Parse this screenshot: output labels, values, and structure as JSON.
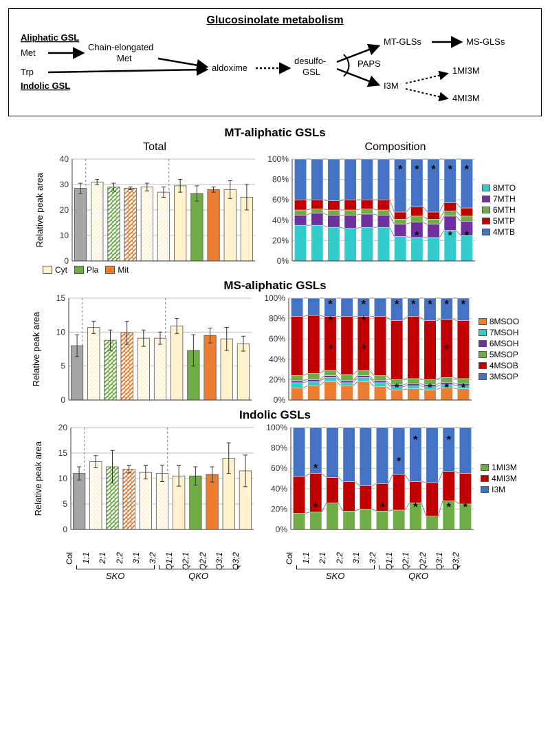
{
  "diagram": {
    "title": "Glucosinolate metabolism",
    "labels": {
      "aliphatic": "Aliphatic GSL",
      "indolic": "Indolic GSL",
      "met": "Met",
      "trp": "Trp",
      "chain1": "Chain-elongated",
      "chain2": "Met",
      "aldoxime": "aldoxime",
      "desulfo1": "desulfo-",
      "desulfo2": "GSL",
      "mtglss": "MT-GLSs",
      "msglss": "MS-GLSs",
      "paps": "PAPS",
      "i3m": "I3M",
      "m1": "1MI3M",
      "m4": "4MI3M"
    }
  },
  "colors": {
    "bg": "#ffffff",
    "gridline": "#bfbfbf",
    "axis": "#595959",
    "col": "#a6a6a6",
    "cyt": "#fff2cc",
    "pla": "#70ad47",
    "mit": "#ed7d31",
    "hatch": "#bfbfbf",
    "text": "#000000",
    "mt": {
      "8MTO": "#33cccc",
      "7MTH": "#7030a0",
      "6MTH": "#70ad47",
      "5MTP": "#c00000",
      "4MTB": "#4472c4"
    },
    "ms": {
      "8MSOO": "#ed7d31",
      "7MSOH": "#33cccc",
      "6MSOH": "#7030a0",
      "5MSOP": "#70ad47",
      "4MSOB": "#c00000",
      "3MSOP": "#4472c4"
    },
    "ind": {
      "1MI3M": "#70ad47",
      "4MI3M": "#c00000",
      "I3M": "#4472c4"
    }
  },
  "legend_cyt": [
    {
      "label": "Cyt",
      "color": "#fff2cc"
    },
    {
      "label": "Pla",
      "color": "#70ad47"
    },
    {
      "label": "Mit",
      "color": "#ed7d31"
    }
  ],
  "categories": [
    "Col",
    "1;1",
    "2;1",
    "2;2",
    "3;1",
    "3;2",
    "Q1;1",
    "Q2;1",
    "Q2;2",
    "Q3;1",
    "Q3;2"
  ],
  "cat_solid": [
    true,
    false,
    false,
    false,
    false,
    false,
    true,
    true,
    true,
    true,
    true
  ],
  "cat_fill": [
    "col",
    "cyt",
    "pla",
    "mit",
    "cyt",
    "cyt",
    "cyt",
    "pla",
    "mit",
    "cyt",
    "cyt"
  ],
  "dashed_after": [
    0,
    5
  ],
  "brackets": [
    {
      "from": 1,
      "to": 5,
      "label": "SKO"
    },
    {
      "from": 6,
      "to": 10,
      "label": "QKO"
    }
  ],
  "ylabel": "Relative peak area",
  "col_headers": {
    "left": "Total",
    "right": "Composition"
  },
  "panels": [
    {
      "title": "MT-aliphatic GSLs",
      "total": {
        "ymax": 40,
        "ystep": 10,
        "values": [
          28.5,
          31,
          29,
          28.5,
          29,
          27,
          29.5,
          26.5,
          28,
          28,
          25
        ],
        "err": [
          2,
          1,
          1.5,
          0.5,
          1.5,
          2,
          2.5,
          3,
          1,
          3.5,
          5
        ]
      },
      "comp": {
        "series": [
          "8MTO",
          "7MTH",
          "6MTH",
          "5MTP",
          "4MTB"
        ],
        "colors": [
          "#33cccc",
          "#7030a0",
          "#70ad47",
          "#c00000",
          "#4472c4"
        ],
        "values": [
          [
            35,
            10,
            5,
            10,
            40
          ],
          [
            35,
            12,
            4,
            9,
            40
          ],
          [
            33,
            12,
            5,
            9,
            41
          ],
          [
            32,
            13,
            5,
            10,
            40
          ],
          [
            33,
            13,
            5,
            9,
            40
          ],
          [
            33,
            12,
            5,
            10,
            40
          ],
          [
            24,
            12,
            5,
            7,
            52
          ],
          [
            23,
            15,
            6,
            9,
            47
          ],
          [
            23,
            13,
            5,
            7,
            52
          ],
          [
            30,
            14,
            5,
            8,
            43
          ],
          [
            25,
            14,
            5,
            8,
            48
          ]
        ],
        "stars": [
          [],
          [],
          [],
          [],
          [],
          [],
          [
            {
              "s": 0,
              "y": 90
            }
          ],
          [
            {
              "s": 0,
              "y": 90
            },
            {
              "s": 4,
              "y": 25
            }
          ],
          [
            {
              "s": 0,
              "y": 90
            }
          ],
          [
            {
              "s": 0,
              "y": 90
            },
            {
              "s": 4,
              "y": 25
            }
          ],
          [
            {
              "s": 0,
              "y": 90
            },
            {
              "s": 4,
              "y": 25
            }
          ]
        ]
      }
    },
    {
      "title": "MS-aliphatic GSLs",
      "total": {
        "ymax": 15,
        "ystep": 5,
        "values": [
          8,
          10.7,
          8.8,
          9.9,
          9.1,
          9.1,
          10.9,
          7.3,
          9.5,
          9,
          8.3
        ],
        "err": [
          1.6,
          0.9,
          1.5,
          1.7,
          1.2,
          0.9,
          1.1,
          2.3,
          1.1,
          1.7,
          1.1
        ]
      },
      "comp": {
        "series": [
          "8MSOO",
          "7MSOH",
          "6MSOH",
          "5MSOP",
          "4MSOB",
          "3MSOP"
        ],
        "colors": [
          "#ed7d31",
          "#33cccc",
          "#7030a0",
          "#70ad47",
          "#c00000",
          "#4472c4"
        ],
        "values": [
          [
            12,
            5,
            2,
            5,
            58,
            18
          ],
          [
            14,
            4,
            2,
            6,
            57,
            17
          ],
          [
            18,
            4,
            2,
            5,
            53,
            18
          ],
          [
            14,
            3,
            2,
            6,
            57,
            18
          ],
          [
            18,
            4,
            2,
            5,
            53,
            18
          ],
          [
            13,
            4,
            2,
            5,
            58,
            18
          ],
          [
            10,
            3,
            2,
            5,
            58,
            22
          ],
          [
            11,
            3,
            2,
            5,
            61,
            18
          ],
          [
            10,
            3,
            2,
            5,
            58,
            22
          ],
          [
            12,
            3,
            2,
            5,
            57,
            21
          ],
          [
            11,
            3,
            2,
            5,
            57,
            22
          ]
        ],
        "stars": [
          [],
          [],
          [
            {
              "s": 0,
              "y": 94
            },
            {
              "s": 3,
              "y": 78
            },
            {
              "s": 4,
              "y": 50
            }
          ],
          [],
          [
            {
              "s": 0,
              "y": 94
            },
            {
              "s": 3,
              "y": 78
            },
            {
              "s": 4,
              "y": 50
            }
          ],
          [],
          [
            {
              "s": 0,
              "y": 94
            },
            {
              "s": 5,
              "y": 12
            }
          ],
          [
            {
              "s": 0,
              "y": 94
            }
          ],
          [
            {
              "s": 0,
              "y": 94
            },
            {
              "s": 5,
              "y": 12
            }
          ],
          [
            {
              "s": 0,
              "y": 94
            },
            {
              "s": 4,
              "y": 50
            },
            {
              "s": 5,
              "y": 12
            }
          ],
          [
            {
              "s": 0,
              "y": 94
            },
            {
              "s": 5,
              "y": 12
            }
          ]
        ]
      }
    },
    {
      "title": "Indolic GSLs",
      "total": {
        "ymax": 20,
        "ystep": 5,
        "values": [
          11,
          13.3,
          12.3,
          11.8,
          11.2,
          11,
          10.5,
          10.5,
          10.8,
          14,
          11.5
        ],
        "err": [
          1.3,
          1.2,
          3.2,
          0.7,
          1.3,
          1.6,
          2,
          1.8,
          1.5,
          3,
          3.1
        ]
      },
      "comp": {
        "series": [
          "1MI3M",
          "4MI3M",
          "I3M"
        ],
        "colors": [
          "#70ad47",
          "#c00000",
          "#4472c4"
        ],
        "values": [
          [
            16,
            36,
            48
          ],
          [
            17,
            38,
            45
          ],
          [
            26,
            25,
            49
          ],
          [
            18,
            29,
            53
          ],
          [
            20,
            23,
            57
          ],
          [
            18,
            27,
            55
          ],
          [
            19,
            35,
            46
          ],
          [
            26,
            21,
            53
          ],
          [
            13,
            33,
            54
          ],
          [
            28,
            29,
            43
          ],
          [
            25,
            30,
            45
          ]
        ],
        "stars": [
          [],
          [
            {
              "s": 1,
              "y": 60
            },
            {
              "s": 2,
              "y": 22
            }
          ],
          [],
          [],
          [],
          [
            {
              "s": 2,
              "y": 22
            }
          ],
          [
            {
              "s": 1,
              "y": 67
            }
          ],
          [
            {
              "s": 0,
              "y": 88
            },
            {
              "s": 2,
              "y": 22
            }
          ],
          [],
          [
            {
              "s": 0,
              "y": 88
            },
            {
              "s": 2,
              "y": 22
            }
          ],
          [
            {
              "s": 2,
              "y": 22
            }
          ]
        ]
      }
    }
  ]
}
